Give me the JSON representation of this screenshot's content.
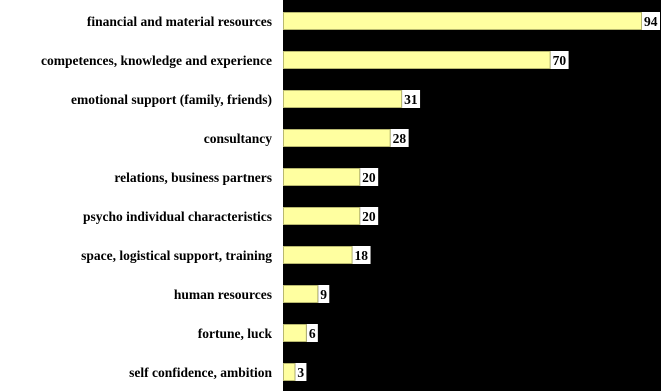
{
  "chart_data": {
    "type": "bar",
    "orientation": "horizontal",
    "categories": [
      "financial and material resources",
      "competences, knowledge and experience",
      "emotional support (family, friends)",
      "consultancy",
      "relations, business partners",
      "psycho individual characteristics",
      "space, logistical support, training",
      "human resources",
      "fortune, luck",
      "self confidence, ambition"
    ],
    "values": [
      94,
      70,
      31,
      28,
      20,
      20,
      18,
      9,
      6,
      3
    ],
    "xlim": [
      0,
      100
    ],
    "grid": false,
    "legend": "none",
    "colors": {
      "plot_background": "#000000",
      "bar_fill": "#ffffa0",
      "bar_stroke": "#b8b870",
      "value_label_background": "#ffffff",
      "text": "#000000"
    }
  }
}
